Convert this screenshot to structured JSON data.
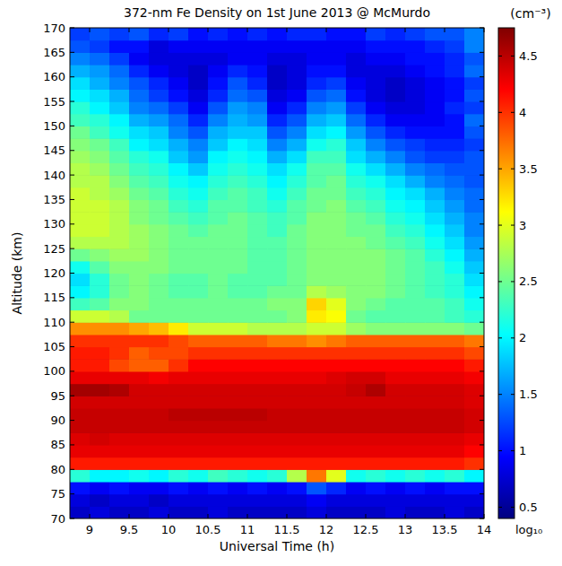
{
  "chart_data": {
    "type": "heatmap",
    "title": "372-nm Fe Density on 1st June 2013 @ McMurdo",
    "x_label": "Universal Time (h)",
    "y_label": "Altitude (km)",
    "colorbar_label": "(cm⁻³)",
    "colorbar_note": "log₁₀",
    "xlim": [
      8.75,
      14
    ],
    "ylim": [
      70,
      170
    ],
    "xticks": [
      9,
      9.5,
      10,
      10.5,
      11,
      11.5,
      12,
      12.5,
      13,
      13.5,
      14
    ],
    "yticks": [
      70,
      75,
      80,
      85,
      90,
      95,
      100,
      105,
      110,
      115,
      120,
      125,
      130,
      135,
      140,
      145,
      150,
      155,
      160,
      165,
      170
    ],
    "zlim": [
      0.4,
      4.75
    ],
    "zticks": [
      0.5,
      1,
      1.5,
      2,
      2.5,
      3,
      3.5,
      4,
      4.5
    ],
    "x": [
      8.875,
      9.125,
      9.375,
      9.625,
      9.875,
      10.125,
      10.375,
      10.625,
      10.875,
      11.125,
      11.375,
      11.625,
      11.875,
      12.125,
      12.375,
      12.625,
      12.875,
      13.125,
      13.375,
      13.625,
      13.875
    ],
    "y": [
      71.25,
      73.75,
      76.25,
      78.75,
      81.25,
      83.75,
      86.25,
      88.75,
      91.25,
      93.75,
      96.25,
      98.75,
      101.25,
      103.75,
      106.25,
      108.75,
      111.25,
      113.75,
      116.25,
      118.75,
      121.25,
      123.75,
      126.25,
      128.75,
      131.25,
      133.75,
      136.25,
      138.75,
      141.25,
      143.75,
      146.25,
      148.75,
      151.25,
      153.75,
      156.25,
      158.75,
      161.25,
      163.75,
      166.25,
      168.75
    ],
    "z": [
      [
        0.7,
        0.8,
        1.0,
        2.2,
        4.1,
        4.3,
        4.35,
        4.45,
        4.45,
        4.4,
        4.6,
        4.3,
        4.1,
        4.1,
        4.0,
        3.6,
        2.9,
        2.3,
        2.0,
        1.9,
        2.1,
        2.5,
        2.8,
        2.9,
        2.9,
        2.9,
        2.9,
        2.8,
        2.8,
        2.7,
        2.6,
        2.5,
        2.3,
        2.2,
        2.0,
        1.9,
        1.7,
        1.5,
        1.3,
        1.2
      ],
      [
        0.8,
        0.7,
        0.9,
        2.0,
        4.1,
        4.3,
        4.4,
        4.45,
        4.45,
        4.4,
        4.6,
        4.3,
        4.1,
        4.1,
        4.0,
        3.6,
        2.9,
        2.4,
        2.2,
        2.2,
        2.4,
        2.6,
        2.8,
        2.9,
        2.9,
        2.9,
        2.8,
        2.8,
        2.7,
        2.6,
        2.5,
        2.3,
        2.2,
        2.0,
        1.9,
        1.7,
        1.6,
        1.4,
        1.2,
        1.3
      ],
      [
        0.7,
        0.8,
        1.0,
        2.0,
        4.1,
        4.3,
        4.35,
        4.45,
        4.45,
        4.4,
        4.55,
        4.3,
        3.9,
        4.0,
        4.0,
        3.6,
        2.8,
        2.6,
        2.5,
        2.5,
        2.6,
        2.7,
        2.8,
        2.8,
        2.8,
        2.8,
        2.7,
        2.6,
        2.5,
        2.4,
        2.3,
        2.1,
        2.0,
        1.8,
        1.7,
        1.5,
        1.4,
        1.2,
        1.0,
        1.2
      ],
      [
        0.7,
        0.8,
        0.9,
        2.1,
        4.1,
        4.3,
        4.35,
        4.45,
        4.45,
        4.4,
        4.4,
        4.3,
        3.8,
        3.8,
        4.0,
        3.5,
        2.5,
        2.6,
        2.6,
        2.6,
        2.6,
        2.7,
        2.7,
        2.7,
        2.6,
        2.6,
        2.5,
        2.4,
        2.3,
        2.2,
        2.0,
        1.9,
        1.7,
        1.5,
        1.4,
        1.3,
        1.1,
        0.9,
        1.0,
        1.3
      ],
      [
        0.8,
        0.7,
        0.9,
        2.0,
        4.1,
        4.3,
        4.35,
        4.45,
        4.45,
        4.4,
        4.4,
        4.25,
        3.8,
        3.9,
        4.0,
        3.4,
        2.5,
        2.5,
        2.5,
        2.5,
        2.6,
        2.6,
        2.6,
        2.6,
        2.5,
        2.5,
        2.4,
        2.3,
        2.2,
        2.1,
        1.9,
        1.8,
        1.6,
        1.4,
        1.2,
        1.1,
        0.9,
        0.8,
        0.8,
        1.1
      ],
      [
        0.7,
        0.8,
        1.0,
        2.2,
        4.1,
        4.3,
        4.35,
        4.45,
        4.5,
        4.4,
        4.4,
        4.3,
        4.0,
        3.9,
        3.9,
        3.2,
        2.5,
        2.5,
        2.4,
        2.4,
        2.5,
        2.5,
        2.5,
        2.5,
        2.4,
        2.3,
        2.2,
        2.1,
        2.0,
        1.8,
        1.7,
        1.5,
        1.4,
        1.2,
        1.0,
        0.9,
        0.8,
        0.8,
        0.9,
        1.2
      ],
      [
        0.7,
        0.8,
        0.9,
        2.1,
        4.1,
        4.3,
        4.35,
        4.45,
        4.5,
        4.4,
        4.4,
        4.3,
        4.2,
        4.0,
        3.8,
        2.9,
        2.5,
        2.5,
        2.4,
        2.4,
        2.5,
        2.5,
        2.5,
        2.4,
        2.3,
        2.2,
        2.1,
        2.0,
        1.8,
        1.6,
        1.5,
        1.3,
        1.1,
        0.9,
        0.8,
        0.7,
        0.7,
        0.8,
        0.9,
        1.0
      ],
      [
        0.8,
        0.8,
        1.0,
        2.3,
        4.1,
        4.3,
        4.35,
        4.45,
        4.5,
        4.4,
        4.4,
        4.3,
        4.2,
        4.0,
        3.8,
        2.9,
        2.5,
        2.5,
        2.5,
        2.5,
        2.5,
        2.5,
        2.5,
        2.5,
        2.4,
        2.4,
        2.3,
        2.2,
        2.1,
        2.0,
        1.8,
        1.7,
        1.5,
        1.3,
        1.1,
        1.0,
        0.9,
        0.8,
        0.9,
        1.1
      ],
      [
        0.7,
        0.8,
        0.9,
        2.2,
        4.1,
        4.3,
        4.35,
        4.45,
        4.5,
        4.4,
        4.4,
        4.3,
        4.2,
        4.0,
        3.8,
        2.9,
        2.5,
        2.5,
        2.4,
        2.4,
        2.5,
        2.5,
        2.5,
        2.5,
        2.5,
        2.4,
        2.4,
        2.3,
        2.2,
        2.1,
        2.0,
        1.8,
        1.7,
        1.6,
        1.4,
        1.3,
        1.1,
        0.9,
        0.9,
        1.0
      ],
      [
        0.7,
        0.8,
        1.0,
        2.1,
        4.1,
        4.3,
        4.35,
        4.45,
        4.5,
        4.4,
        4.4,
        4.3,
        4.2,
        4.0,
        3.8,
        2.8,
        2.5,
        2.5,
        2.4,
        2.4,
        2.4,
        2.4,
        2.4,
        2.4,
        2.4,
        2.3,
        2.3,
        2.2,
        2.1,
        2.0,
        1.9,
        1.8,
        1.6,
        1.5,
        1.3,
        1.1,
        1.0,
        0.9,
        0.9,
        1.1
      ],
      [
        0.7,
        0.8,
        0.9,
        2.2,
        4.1,
        4.3,
        4.35,
        4.45,
        4.45,
        4.4,
        4.4,
        4.3,
        4.2,
        4.0,
        3.7,
        2.8,
        2.5,
        2.6,
        2.5,
        2.4,
        2.4,
        2.4,
        2.4,
        2.3,
        2.3,
        2.2,
        2.1,
        2.0,
        1.9,
        1.7,
        1.5,
        1.3,
        1.1,
        0.9,
        0.8,
        0.7,
        0.7,
        0.8,
        0.9,
        1.0
      ],
      [
        0.7,
        0.8,
        1.0,
        2.8,
        4.1,
        4.3,
        4.35,
        4.45,
        4.45,
        4.4,
        4.4,
        4.3,
        4.2,
        4.0,
        3.7,
        2.8,
        2.6,
        2.6,
        2.5,
        2.5,
        2.5,
        2.5,
        2.5,
        2.5,
        2.4,
        2.4,
        2.3,
        2.2,
        2.1,
        1.9,
        1.7,
        1.5,
        1.3,
        1.1,
        0.9,
        0.8,
        0.8,
        0.8,
        0.9,
        1.1
      ],
      [
        0.8,
        0.9,
        1.3,
        3.7,
        4.1,
        4.3,
        4.35,
        4.45,
        4.45,
        4.4,
        4.4,
        4.3,
        4.2,
        4.0,
        3.6,
        2.9,
        3.2,
        3.3,
        2.8,
        2.6,
        2.6,
        2.6,
        2.6,
        2.6,
        2.6,
        2.5,
        2.5,
        2.4,
        2.4,
        2.3,
        2.1,
        1.9,
        1.7,
        1.5,
        1.3,
        1.1,
        1.0,
        0.9,
        0.9,
        1.1
      ],
      [
        0.7,
        0.8,
        1.1,
        3.0,
        4.1,
        4.3,
        4.35,
        4.45,
        4.45,
        4.4,
        4.4,
        4.35,
        4.2,
        4.0,
        3.7,
        2.9,
        3.1,
        3.0,
        2.7,
        2.6,
        2.6,
        2.6,
        2.6,
        2.6,
        2.6,
        2.6,
        2.5,
        2.5,
        2.4,
        2.3,
        2.2,
        2.0,
        1.8,
        1.6,
        1.4,
        1.2,
        1.0,
        0.9,
        0.9,
        1.0
      ],
      [
        0.7,
        0.8,
        0.9,
        2.1,
        4.1,
        4.3,
        4.35,
        4.45,
        4.45,
        4.4,
        4.45,
        4.4,
        4.2,
        4.0,
        3.8,
        2.7,
        2.5,
        2.6,
        2.6,
        2.6,
        2.6,
        2.6,
        2.6,
        2.5,
        2.5,
        2.4,
        2.3,
        2.2,
        2.1,
        1.9,
        1.8,
        1.6,
        1.4,
        1.2,
        1.0,
        0.9,
        0.8,
        0.8,
        0.9,
        1.0
      ],
      [
        0.7,
        0.8,
        1.0,
        2.2,
        4.1,
        4.3,
        4.35,
        4.45,
        4.45,
        4.4,
        4.55,
        4.4,
        4.2,
        4.0,
        3.8,
        2.6,
        2.4,
        2.5,
        2.6,
        2.6,
        2.6,
        2.6,
        2.5,
        2.5,
        2.4,
        2.3,
        2.2,
        2.1,
        1.9,
        1.7,
        1.5,
        1.3,
        1.1,
        0.9,
        0.8,
        0.8,
        0.8,
        0.9,
        1.0,
        1.2
      ],
      [
        0.8,
        0.8,
        0.9,
        2.1,
        4.1,
        4.3,
        4.35,
        4.45,
        4.45,
        4.4,
        4.4,
        4.3,
        4.2,
        4.0,
        3.8,
        2.6,
        2.4,
        2.4,
        2.5,
        2.5,
        2.5,
        2.5,
        2.4,
        2.3,
        2.2,
        2.1,
        2.0,
        1.9,
        1.7,
        1.5,
        1.3,
        1.1,
        0.9,
        0.8,
        0.7,
        0.7,
        0.8,
        0.9,
        1.0,
        1.1
      ],
      [
        0.7,
        0.8,
        1.0,
        2.2,
        4.1,
        4.3,
        4.35,
        4.45,
        4.45,
        4.4,
        4.4,
        4.3,
        4.2,
        4.0,
        3.8,
        2.6,
        2.4,
        2.4,
        2.4,
        2.4,
        2.4,
        2.4,
        2.3,
        2.2,
        2.1,
        2.0,
        1.9,
        1.7,
        1.5,
        1.3,
        1.2,
        1.0,
        0.9,
        0.8,
        0.8,
        0.8,
        0.9,
        1.0,
        1.0,
        1.2
      ],
      [
        0.7,
        0.8,
        0.9,
        2.1,
        4.1,
        4.3,
        4.35,
        4.45,
        4.45,
        4.4,
        4.4,
        4.3,
        4.2,
        4.0,
        3.8,
        2.6,
        2.4,
        2.4,
        2.3,
        2.3,
        2.3,
        2.2,
        2.1,
        2.0,
        1.9,
        1.8,
        1.7,
        1.5,
        1.4,
        1.2,
        1.1,
        1.0,
        0.9,
        0.9,
        0.9,
        0.9,
        1.0,
        1.0,
        1.1,
        1.3
      ],
      [
        0.8,
        0.8,
        1.0,
        2.2,
        4.1,
        4.3,
        4.35,
        4.45,
        4.45,
        4.4,
        4.4,
        4.3,
        4.2,
        4.0,
        3.8,
        2.6,
        2.3,
        2.3,
        2.2,
        2.2,
        2.1,
        2.0,
        1.9,
        1.8,
        1.7,
        1.6,
        1.5,
        1.4,
        1.3,
        1.2,
        1.1,
        1.0,
        1.0,
        1.1,
        1.0,
        1.0,
        1.1,
        1.1,
        1.2,
        1.3
      ],
      [
        0.7,
        0.8,
        1.0,
        2.0,
        4.0,
        4.2,
        4.3,
        4.4,
        4.4,
        4.35,
        4.35,
        4.25,
        4.1,
        3.9,
        3.7,
        2.5,
        2.2,
        2.1,
        2.0,
        1.9,
        1.8,
        1.7,
        1.6,
        1.5,
        1.5,
        1.4,
        1.4,
        1.3,
        1.3,
        1.3,
        1.2,
        1.3,
        1.4,
        1.2,
        1.3,
        1.2,
        1.4,
        1.3,
        1.5,
        1.5
      ]
    ]
  }
}
